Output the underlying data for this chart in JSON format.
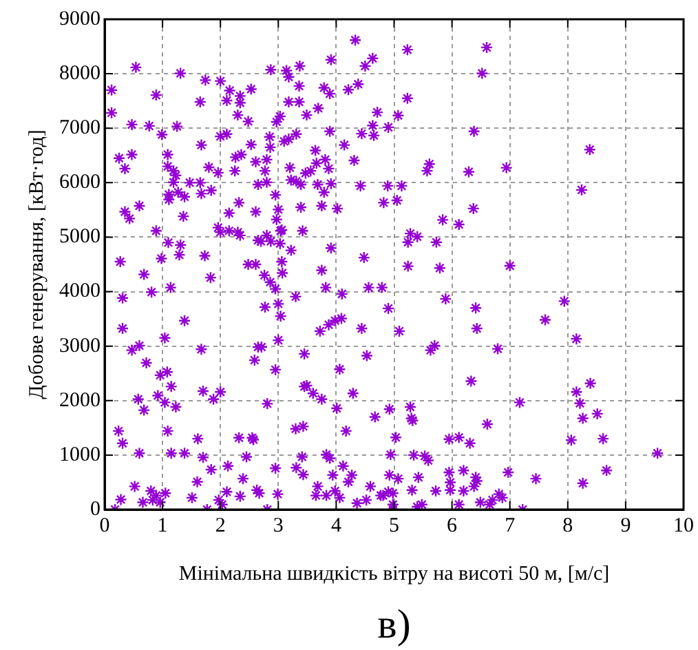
{
  "chart_data": {
    "type": "scatter",
    "xlabel": "Мінімальна швидкість вітру на висоті 50 м, [м/с]",
    "ylabel": "Добове генерування, [кВт·год]",
    "annotations": [
      "в)"
    ],
    "color": "#9400d3",
    "marker": "cross",
    "grid": true,
    "xlim": [
      0,
      10
    ],
    "ylim": [
      0,
      9000
    ],
    "xticks": [
      0,
      1,
      2,
      3,
      4,
      5,
      6,
      7,
      8,
      9,
      10
    ],
    "yticks": [
      0,
      1000,
      2000,
      3000,
      4000,
      5000,
      6000,
      7000,
      8000,
      9000
    ],
    "x": [
      4.33,
      0.54,
      1.31,
      0.12,
      0.89,
      1.65,
      1.74,
      2.0,
      2.11,
      2.16,
      2.34,
      2.34,
      2.53,
      2.3,
      2.48,
      2.87,
      3.14,
      3.18,
      3.37,
      3.36,
      3.18,
      3.36,
      3.49,
      3.03,
      2.97,
      3.91,
      3.79,
      3.89,
      3.69,
      3.89,
      4.21,
      4.38,
      4.5,
      4.63,
      4.71,
      4.44,
      4.63,
      4.65,
      4.9,
      4.14,
      4.31,
      0.47,
      0.77,
      0.99,
      1.25,
      1.67,
      2.0,
      2.11,
      2.53,
      2.85,
      2.86,
      3.1,
      3.18,
      3.31,
      0.25,
      0.35,
      0.47,
      1.09,
      1.09,
      1.19,
      1.23,
      1.19,
      1.8,
      1.96,
      2.26,
      2.36,
      2.25,
      2.61,
      2.8,
      2.77,
      2.65,
      2.8,
      2.95,
      3.2,
      3.22,
      3.39,
      3.31,
      3.47,
      3.56,
      3.66,
      3.64,
      3.81,
      3.87,
      3.68,
      3.91,
      3.79,
      4.42,
      4.89,
      4.82,
      0.35,
      0.43,
      0.6,
      1.11,
      1.11,
      1.27,
      1.38,
      1.36,
      1.47,
      1.65,
      1.67,
      1.84,
      2.32,
      2.15,
      2.61,
      2.97,
      3.0,
      3.04,
      3.39,
      3.75,
      4.02,
      1.96,
      2.0,
      2.15,
      2.3,
      2.34,
      2.65,
      2.7,
      2.8,
      2.87,
      3.03,
      3.06,
      3.42,
      3.22,
      0.89,
      1.1,
      1.31,
      1.29,
      1.73,
      0.27,
      0.98,
      2.48,
      2.61,
      3.06,
      3.91,
      4.48,
      5.23,
      6.6,
      6.52,
      5.23,
      5.07,
      6.38,
      8.38,
      5.61,
      5.57,
      6.29,
      6.94,
      5.13,
      5.05,
      8.24,
      6.37,
      5.84,
      6.12,
      5.28,
      5.24,
      5.4,
      5.73,
      5.24,
      5.79,
      7.0,
      0.68,
      0.81,
      1.14,
      1.83,
      0.31,
      2.76,
      2.86,
      3.07,
      2.95,
      3.0,
      2.77,
      3.04,
      3.3,
      3.75,
      3.82,
      4.1,
      4.56,
      4.79,
      4.9,
      4.44,
      4.53,
      4.06,
      3.45,
      3.72,
      3.87,
      3.98,
      4.09,
      1.38,
      1.04,
      0.31,
      0.47,
      0.6,
      0.72,
      1.67,
      2.59,
      2.65,
      2.71,
      3.0,
      2.95,
      0.96,
      1.08,
      1.15,
      0.58,
      0.68,
      0.92,
      1.04,
      1.23,
      1.7,
      1.88,
      2.0,
      2.81,
      3.45,
      3.49,
      3.6,
      3.75,
      4.01,
      4.29,
      0.24,
      0.31,
      0.6,
      1.09,
      1.15,
      1.38,
      1.61,
      1.7,
      1.84,
      2.13,
      2.32,
      2.45,
      2.55,
      2.57,
      2.95,
      3.3,
      3.43,
      3.41,
      3.31,
      3.43,
      3.83,
      3.89,
      3.94,
      4.12,
      4.27,
      4.21,
      4.17,
      3.68,
      3.65,
      3.83,
      3.98,
      4.06,
      0.52,
      0.8,
      0.89,
      1.05,
      0.96,
      0.66,
      0.83,
      1.6,
      1.51,
      1.77,
      1.97,
      2.03,
      2.11,
      2.39,
      2.34,
      2.63,
      2.67,
      2.81,
      2.99,
      0.18,
      0.28,
      4.36,
      4.52,
      4.59,
      4.81,
      4.9,
      5.89,
      6.41,
      5.09,
      5.63,
      5.7,
      6.43,
      6.79,
      7.61,
      7.94,
      8.15,
      6.33,
      8.15,
      8.21,
      8.39,
      8.26,
      8.51,
      7.17,
      8.06,
      8.61,
      9.55,
      8.67,
      8.26,
      7.45,
      5.28,
      5.3,
      5.32,
      4.92,
      4.67,
      5.03,
      4.94,
      5.34,
      5.53,
      5.59,
      5.95,
      6.12,
      6.31,
      6.61,
      4.92,
      5.07,
      5.42,
      5.31,
      5.95,
      5.97,
      6.2,
      6.41,
      6.43,
      6.38,
      5.97,
      6.2,
      5.72,
      6.97,
      4.77,
      4.98,
      4.98,
      4.98,
      5.4,
      5.48,
      6.12,
      6.49,
      6.65,
      6.7,
      6.81,
      6.87,
      7.22,
      0.12
    ],
    "values": [
      8617,
      8117,
      8008,
      7700,
      7608,
      7483,
      7883,
      7867,
      7508,
      7692,
      7592,
      7467,
      7717,
      7242,
      7125,
      8075,
      8058,
      7942,
      8142,
      7775,
      7483,
      7483,
      7242,
      7217,
      7117,
      8258,
      7742,
      7633,
      7367,
      6942,
      7708,
      7808,
      8142,
      8283,
      7292,
      6900,
      7050,
      6867,
      7017,
      6692,
      6408,
      7067,
      7042,
      6883,
      7033,
      6692,
      6850,
      6892,
      6700,
      6842,
      6650,
      6758,
      6800,
      6892,
      6450,
      6258,
      6517,
      6517,
      6300,
      6217,
      6133,
      6008,
      6283,
      6183,
      6467,
      6517,
      6217,
      6383,
      6425,
      6217,
      5967,
      6008,
      5775,
      6275,
      6050,
      5967,
      6025,
      6175,
      6217,
      6358,
      6592,
      6425,
      6258,
      5967,
      5983,
      5825,
      5942,
      5942,
      5633,
      5467,
      5342,
      5575,
      5692,
      5783,
      5825,
      5742,
      5383,
      6000,
      6000,
      5800,
      5858,
      5633,
      5442,
      5467,
      5325,
      5508,
      5117,
      5550,
      5575,
      5525,
      5175,
      5092,
      5117,
      5092,
      5033,
      4942,
      4925,
      5033,
      4925,
      4883,
      5133,
      5117,
      4758,
      5117,
      4900,
      4858,
      4675,
      4658,
      4550,
      4608,
      4500,
      4500,
      4550,
      4800,
      4625,
      8442,
      8483,
      8008,
      7550,
      7233,
      6942,
      6608,
      6342,
      6217,
      6200,
      6275,
      5942,
      5675,
      5867,
      5525,
      5317,
      5233,
      5067,
      4908,
      5008,
      4908,
      4467,
      4433,
      4475,
      4317,
      3992,
      4075,
      4258,
      3883,
      4300,
      4175,
      4342,
      4050,
      3775,
      3717,
      3550,
      3908,
      4392,
      4075,
      3958,
      4075,
      4075,
      3692,
      3325,
      2825,
      2575,
      2858,
      3275,
      3392,
      3467,
      3508,
      3467,
      3150,
      3325,
      2925,
      3008,
      2692,
      2942,
      2742,
      2983,
      2983,
      3108,
      2567,
      2467,
      2525,
      2258,
      2025,
      1825,
      2092,
      1967,
      1883,
      2175,
      2025,
      2158,
      1942,
      2258,
      2275,
      2133,
      2025,
      1858,
      2133,
      1442,
      1217,
      1033,
      1442,
      1033,
      1033,
      1300,
      958,
      733,
      800,
      1317,
      967,
      1317,
      1283,
      758,
      1483,
      1525,
      967,
      767,
      642,
      1008,
      942,
      633,
      800,
      633,
      508,
      1442,
      425,
      258,
      258,
      342,
      217,
      425,
      342,
      258,
      300,
      133,
      133,
      175,
      508,
      217,
      0,
      175,
      92,
      325,
      567,
      242,
      358,
      300,
      0,
      283,
      0,
      183,
      117,
      175,
      425,
      258,
      325,
      3867,
      3700,
      3275,
      2925,
      3008,
      3325,
      2950,
      3483,
      3825,
      3133,
      2358,
      2158,
      1950,
      2317,
      1675,
      1758,
      1967,
      1275,
      1300,
      1033,
      717,
      483,
      567,
      1883,
      1675,
      1633,
      1842,
      1700,
      1325,
      1008,
      1000,
      983,
      900,
      1292,
      1325,
      1217,
      1567,
      633,
      567,
      592,
      358,
      683,
      500,
      717,
      592,
      525,
      425,
      358,
      342,
      342,
      683,
      258,
      300,
      92,
      0,
      50,
      92,
      92,
      133,
      92,
      175,
      283,
      217,
      0,
      7283
    ]
  }
}
